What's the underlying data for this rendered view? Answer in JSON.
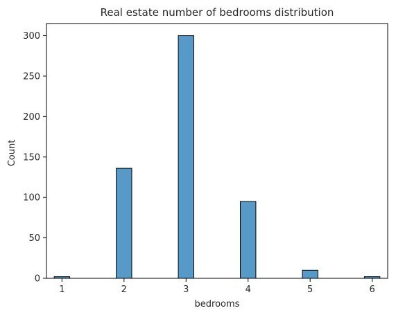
{
  "chart_data": {
    "type": "bar",
    "title": "Real estate number of bedrooms distribution",
    "xlabel": "bedrooms",
    "ylabel": "Count",
    "x_ticks": [
      "1",
      "2",
      "3",
      "4",
      "5",
      "6"
    ],
    "y_ticks": [
      "0",
      "50",
      "100",
      "150",
      "200",
      "250",
      "300"
    ],
    "xlim": [
      0.75,
      6.25
    ],
    "ylim": [
      0,
      315
    ],
    "bin_width": 0.25,
    "bars": [
      {
        "x": 1,
        "value": 2
      },
      {
        "x": 2,
        "value": 136
      },
      {
        "x": 3,
        "value": 300
      },
      {
        "x": 4,
        "value": 95
      },
      {
        "x": 5,
        "value": 10
      },
      {
        "x": 6,
        "value": 2
      }
    ],
    "bar_color": "#5799c7",
    "bar_edge_color": "#000000",
    "grid": false
  }
}
